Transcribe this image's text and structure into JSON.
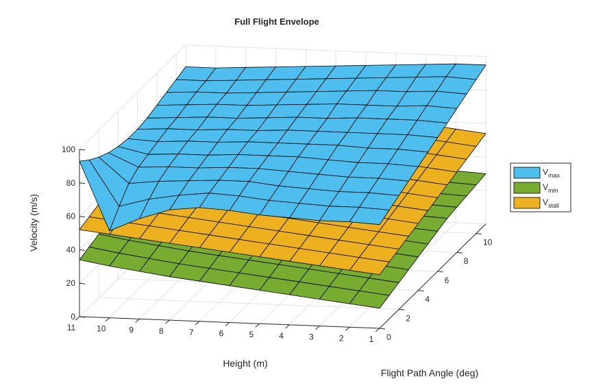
{
  "chart_data": {
    "type": "surface",
    "title": "Full Flight Envelope",
    "xlabel": "Height (m)",
    "ylabel": "Flight Path Angle (deg)",
    "zlabel": "Velocity (m/s)",
    "x_range": [
      1,
      11
    ],
    "y_range": [
      0,
      11
    ],
    "z_range": [
      0,
      100
    ],
    "x_ticks": [
      1,
      2,
      3,
      4,
      5,
      6,
      7,
      8,
      9,
      10,
      11
    ],
    "y_ticks": [
      0,
      2,
      4,
      6,
      8,
      10
    ],
    "z_ticks": [
      0,
      20,
      40,
      60,
      80,
      100
    ],
    "grid": true,
    "legend_position": "right",
    "heights": [
      1,
      2,
      3,
      4,
      5,
      6,
      7,
      8,
      9,
      10,
      11
    ],
    "angles": [
      0,
      1,
      2,
      3,
      4,
      5,
      6,
      7,
      8,
      9,
      10,
      11
    ],
    "series": [
      {
        "name": "V",
        "subscript": "min",
        "color": "#77ac30",
        "z": [
          [
            12,
            14,
            16,
            18,
            20,
            22,
            24,
            26,
            27,
            28,
            29,
            30
          ],
          [
            14,
            16,
            18,
            20,
            22,
            24,
            25.5,
            27,
            28,
            29,
            30,
            31
          ],
          [
            16,
            18,
            20,
            22,
            24,
            25.5,
            27,
            28,
            29,
            30,
            31,
            32
          ],
          [
            18,
            20,
            22,
            24,
            25.5,
            27,
            28,
            29,
            30,
            31,
            32,
            33
          ],
          [
            20,
            22,
            24,
            26,
            27,
            28.5,
            29.5,
            30.5,
            31.5,
            32.5,
            33.5,
            34
          ],
          [
            22,
            24,
            26,
            27.5,
            29,
            30,
            31,
            32,
            33,
            34,
            34.5,
            35
          ],
          [
            24,
            26,
            28,
            29.5,
            31,
            32,
            33,
            34,
            35,
            35.5,
            36,
            36.5
          ],
          [
            26,
            28,
            30,
            31.5,
            33,
            34,
            35,
            36,
            36.5,
            37,
            37.5,
            38
          ],
          [
            28.5,
            30.5,
            32.5,
            34,
            35,
            36,
            37,
            38,
            38.5,
            39,
            39.5,
            40
          ],
          [
            31,
            33,
            35,
            36.5,
            38,
            39,
            39.5,
            40,
            40.5,
            41,
            41.5,
            42
          ],
          [
            34,
            36,
            38,
            39.5,
            41,
            42,
            42.5,
            43,
            43.5,
            44,
            44.5,
            45
          ]
        ]
      },
      {
        "name": "V",
        "subscript": "stall",
        "color": "#edb120",
        "z": [
          [
            32,
            34,
            36,
            38,
            40,
            42,
            44,
            46,
            48,
            50,
            52,
            54
          ],
          [
            34,
            36,
            38,
            40,
            42,
            44,
            46,
            48,
            50,
            52,
            54,
            56
          ],
          [
            36,
            38,
            40,
            42,
            44,
            46,
            48,
            50,
            52,
            54,
            56,
            58
          ],
          [
            38,
            40,
            42,
            44,
            46,
            48,
            50,
            52,
            54,
            56,
            58,
            60
          ],
          [
            40,
            42,
            44,
            46,
            48,
            50,
            52,
            54,
            56,
            58,
            60,
            62
          ],
          [
            42,
            44,
            46,
            48,
            50,
            52,
            54,
            56,
            58,
            60,
            62,
            64
          ],
          [
            44,
            46,
            48,
            50,
            52,
            54,
            56,
            58,
            60,
            62,
            64,
            66
          ],
          [
            46,
            48,
            50,
            52,
            54,
            56,
            58,
            60,
            62,
            64,
            66,
            68
          ],
          [
            48,
            50,
            52,
            54,
            56,
            58,
            60,
            62,
            64,
            66,
            68,
            70
          ],
          [
            50,
            52,
            54,
            56,
            58,
            60,
            62,
            64,
            66,
            68,
            70,
            72
          ],
          [
            52,
            54,
            56,
            58,
            60,
            62,
            64,
            66,
            68,
            70,
            72,
            74
          ]
        ]
      },
      {
        "name": "V",
        "subscript": "max",
        "color": "#4dbeee",
        "z": [
          [
            62,
            65,
            68,
            71,
            74,
            77,
            80,
            83,
            86,
            89,
            92,
            95
          ],
          [
            63,
            66,
            69,
            72,
            75,
            78,
            81,
            84,
            87,
            90,
            93,
            95
          ],
          [
            63,
            66,
            69,
            72,
            75,
            78,
            81,
            84,
            86,
            89,
            92,
            94
          ],
          [
            64,
            67,
            70,
            73,
            76,
            79,
            81,
            84,
            86,
            89,
            91,
            93
          ],
          [
            65,
            68,
            71,
            74,
            77,
            79,
            81,
            83,
            86,
            88,
            90,
            92
          ],
          [
            67,
            70,
            73,
            75,
            77,
            79,
            81,
            83,
            85,
            87,
            89,
            91
          ],
          [
            68,
            71,
            73,
            75,
            77,
            79,
            80,
            82,
            84,
            86,
            88,
            90
          ],
          [
            66,
            69,
            72,
            74,
            76,
            78,
            80,
            81,
            83,
            85,
            87,
            89
          ],
          [
            60,
            66,
            71,
            74,
            76,
            78,
            79,
            81,
            83,
            84,
            86,
            88
          ],
          [
            52,
            61,
            69,
            73,
            75,
            77,
            79,
            80,
            82,
            84,
            85,
            87
          ],
          [
            93,
            88,
            84,
            81,
            79,
            78,
            78,
            79,
            81,
            83,
            85,
            87
          ]
        ]
      }
    ]
  }
}
